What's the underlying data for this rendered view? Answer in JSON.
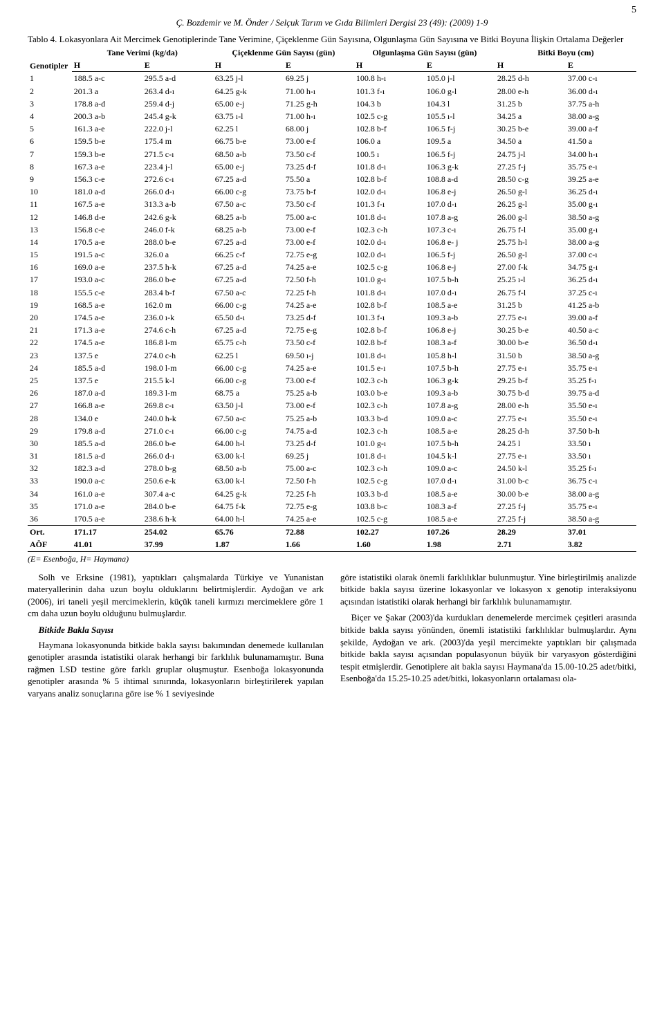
{
  "page_number": "5",
  "running_head": "Ç. Bozdemir ve M. Önder / Selçuk Tarım ve Gıda Bilimleri Dergisi 23 (49): (2009) 1-9",
  "table": {
    "caption_lead": "Tablo 4.",
    "caption_rest": " Lokasyonlara Ait Mercimek Genotiplerinde Tane Verimine, Çiçeklenme Gün Sayısına, Olgunlaşma Gün Sayısına ve Bitki Boyuna İlişkin Ortalama Değerler",
    "group_headers": [
      "Genotipler",
      "Tane Verimi (kg/da)",
      "Çiçeklenme Gün Sayısı (gün)",
      "Olgunlaşma Gün Sayısı (gün)",
      "Bitki Boyu  (cm)"
    ],
    "sub_headers": [
      "",
      "H",
      "E",
      "H",
      "E",
      "H",
      "E",
      "H",
      "E"
    ],
    "rows": [
      [
        "1",
        "188.5 a-c",
        "295.5 a-d",
        "63.25 j-l",
        "69.25 j",
        "100.8 h-ı",
        "105.0 j-l",
        "28.25 d-h",
        "37.00 c-ı"
      ],
      [
        "2",
        "201.3 a",
        "263.4 d-ı",
        "64.25 g-k",
        "71.00 h-ı",
        "101.3 f-ı",
        "106.0 g-l",
        "28.00 e-h",
        "36.00 d-ı"
      ],
      [
        "3",
        "178.8 a-d",
        "259.4 d-j",
        "65.00 e-j",
        "71.25 g-h",
        "104.3 b",
        "104.3 l",
        "31.25 b",
        "37.75 a-h"
      ],
      [
        "4",
        "200.3 a-b",
        "245.4 g-k",
        "63.75 ı-l",
        "71.00 h-ı",
        "102.5 c-g",
        "105.5 ı-l",
        "34.25 a",
        "38.00 a-g"
      ],
      [
        "5",
        "161.3 a-e",
        "222.0 j-l",
        "62.25 l",
        "68.00 j",
        "102.8 b-f",
        "106.5 f-j",
        "30.25 b-e",
        "39.00 a-f"
      ],
      [
        "6",
        "159.5 b-e",
        "175.4 m",
        "66.75 b-e",
        "73.00 e-f",
        "106.0 a",
        "109.5 a",
        "34.50 a",
        "41.50 a"
      ],
      [
        "7",
        "159.3 b-e",
        "271.5 c-ı",
        "68.50 a-b",
        "73.50 c-f",
        "100.5 ı",
        "106.5 f-j",
        "24.75 j-l",
        "34.00 h-ı"
      ],
      [
        "8",
        "167.3 a-e",
        "223.4 j-l",
        "65.00 e-j",
        "73.25 d-f",
        "101.8 d-ı",
        "106.3 g-k",
        "27.25 f-j",
        "35.75 e-ı"
      ],
      [
        "9",
        "156.3 c-e",
        "272.6 c-ı",
        "67.25 a-d",
        "75.50 a",
        "102.8 b-f",
        "108.8 a-d",
        "28.50 c-g",
        "39.25 a-e"
      ],
      [
        "10",
        "181.0 a-d",
        "266.0 d-ı",
        "66.00 c-g",
        "73.75 b-f",
        "102.0 d-ı",
        "106.8 e-j",
        "26.50 g-l",
        "36.25 d-ı"
      ],
      [
        "11",
        "167.5 a-e",
        "313.3 a-b",
        "67.50 a-c",
        "73.50 c-f",
        "101.3 f-ı",
        "107.0 d-ı",
        "26.25 g-l",
        "35.00 g-ı"
      ],
      [
        "12",
        "146.8 d-e",
        "242.6 g-k",
        "68.25 a-b",
        "75.00 a-c",
        "101.8 d-ı",
        "107.8 a-g",
        "26.00 g-l",
        "38.50 a-g"
      ],
      [
        "13",
        "156.8 c-e",
        "246.0 f-k",
        "68.25 a-b",
        "73.00 e-f",
        "102.3 c-h",
        "107.3 c-ı",
        "26.75 f-l",
        "35.00 g-ı"
      ],
      [
        "14",
        "170.5 a-e",
        "288.0 b-e",
        "67.25 a-d",
        "73.00 e-f",
        "102.0 d-ı",
        "106.8 e- j",
        "25.75 h-l",
        "38.00 a-g"
      ],
      [
        "15",
        "191.5 a-c",
        "326.0 a",
        "66.25 c-f",
        "72.75 e-g",
        "102.0 d-ı",
        "106.5 f-j",
        "26.50 g-l",
        "37.00 c-ı"
      ],
      [
        "16",
        "169.0 a-e",
        "237.5 h-k",
        "67.25 a-d",
        "74.25 a-e",
        "102.5 c-g",
        "106.8 e-j",
        "27.00 f-k",
        "34.75 g-ı"
      ],
      [
        "17",
        "193.0 a-c",
        "286.0 b-e",
        "67.25 a-d",
        "72.50 f-h",
        "101.0 g-ı",
        "107.5 b-h",
        "25.25 ı-l",
        "36.25 d-ı"
      ],
      [
        "18",
        "155.5 c-e",
        "283.4 b-f",
        "67.50 a-c",
        "72.25 f-h",
        "101.8 d-ı",
        "107.0 d-ı",
        "26.75 f-l",
        "37.25 c-ı"
      ],
      [
        "19",
        "168.5 a-e",
        "162.0 m",
        "66.00 c-g",
        "74.25 a-e",
        "102.8 b-f",
        "108.5 a-e",
        "31.25 b",
        "41.25 a-b"
      ],
      [
        "20",
        "174.5 a-e",
        "236.0 ı-k",
        "65.50 d-ı",
        "73.25 d-f",
        "101.3 f-ı",
        "109.3 a-b",
        "27.75 e-ı",
        "39.00 a-f"
      ],
      [
        "21",
        "171.3 a-e",
        "274.6 c-h",
        "67.25 a-d",
        "72.75 e-g",
        "102.8 b-f",
        "106.8 e-j",
        "30.25 b-e",
        "40.50 a-c"
      ],
      [
        "22",
        "174.5 a-e",
        "186.8 l-m",
        "65.75 c-h",
        "73.50 c-f",
        "102.8 b-f",
        "108.3 a-f",
        "30.00 b-e",
        "36.50 d-ı"
      ],
      [
        "23",
        "137.5 e",
        "274.0 c-h",
        "62.25 l",
        "69.50 ı-j",
        "101.8 d-ı",
        "105.8 h-l",
        "31.50 b",
        "38.50 a-g"
      ],
      [
        "24",
        "185.5 a-d",
        "198.0 l-m",
        "66.00 c-g",
        "74.25 a-e",
        "101.5 e-ı",
        "107.5 b-h",
        "27.75 e-ı",
        "35.75 e-ı"
      ],
      [
        "25",
        "137.5 e",
        "215.5 k-l",
        "66.00 c-g",
        "73.00 e-f",
        "102.3 c-h",
        "106.3 g-k",
        "29.25 b-f",
        "35.25 f-ı"
      ],
      [
        "26",
        "187.0 a-d",
        "189.3 l-m",
        "68.75 a",
        "75.25 a-b",
        "103.0 b-e",
        "109.3 a-b",
        "30.75 b-d",
        "39.75 a-d"
      ],
      [
        "27",
        "166.8 a-e",
        "269.8 c-ı",
        "63.50 j-l",
        "73.00 e-f",
        "102.3 c-h",
        "107.8 a-g",
        "28.00 e-h",
        "35.50 e-ı"
      ],
      [
        "28",
        "134.0 e",
        "240.0 h-k",
        "67.50 a-c",
        "75.25 a-b",
        "103.3 b-d",
        "109.0 a-c",
        "27.75 e-ı",
        "35.50 e-ı"
      ],
      [
        "29",
        "179.8 a-d",
        "271.0 c-ı",
        "66.00 c-g",
        "74.75 a-d",
        "102.3 c-h",
        "108.5 a-e",
        "28.25 d-h",
        "37.50 b-h"
      ],
      [
        "30",
        "185.5 a-d",
        "286.0 b-e",
        "64.00 h-l",
        "73.25 d-f",
        "101.0 g-ı",
        "107.5 b-h",
        "24.25 l",
        "33.50 ı"
      ],
      [
        "31",
        "181.5 a-d",
        "266.0 d-ı",
        "63.00 k-l",
        "69.25 j",
        "101.8 d-ı",
        "104.5 k-l",
        "27.75 e-ı",
        "33.50 ı"
      ],
      [
        "32",
        "182.3 a-d",
        "278.0 b-g",
        "68.50 a-b",
        "75.00 a-c",
        "102.3 c-h",
        "109.0 a-c",
        "24.50 k-l",
        "35.25 f-ı"
      ],
      [
        "33",
        "190.0 a-c",
        "250.6 e-k",
        "63.00 k-l",
        "72.50 f-h",
        "102.5 c-g",
        "107.0 d-ı",
        "31.00 b-c",
        "36.75 c-ı"
      ],
      [
        "34",
        "161.0 a-e",
        "307.4 a-c",
        "64.25 g-k",
        "72.25 f-h",
        "103.3 b-d",
        "108.5 a-e",
        "30.00 b-e",
        "38.00 a-g"
      ],
      [
        "35",
        "171.0 a-e",
        "284.0 b-e",
        "64.75 f-k",
        "72.75 e-g",
        "103.8 b-c",
        "108.3 a-f",
        "27.25 f-j",
        "35.75 e-ı"
      ],
      [
        "36",
        "170.5 a-e",
        "238.6 h-k",
        "64.00 h-l",
        "74.25 a-e",
        "102.5 c-g",
        "108.5 a-e",
        "27.25 f-j",
        "38.50 a-g"
      ]
    ],
    "footer_rows": [
      [
        "Ort.",
        "171.17",
        "254.02",
        "65.76",
        "72.88",
        "102.27",
        "107.26",
        "28.29",
        "37.01"
      ],
      [
        "AÖF",
        "41.01",
        "37.99",
        "1.87",
        "1.66",
        "1.60",
        "1.98",
        "2.71",
        "3.82"
      ]
    ],
    "note": "(E= Esenboğa, H= Haymana)"
  },
  "body": {
    "left": {
      "p1": "Solh ve Erksine (1981), yaptıkları çalışmalarda Türkiye ve Yunanistan materyallerinin daha uzun boylu olduklarını belirtmişlerdir. Aydoğan ve ark (2006), iri taneli yeşil mercimeklerin, küçük taneli kırmızı mercimeklere göre 1 cm daha uzun boylu olduğunu bulmuşlardır.",
      "h": "Bitkide Bakla Sayısı",
      "p2": "Haymana lokasyonunda bitkide bakla sayısı bakımından denemede kullanılan genotipler arasında istatistiki olarak herhangi bir farklılık bulunamamıştır. Buna rağmen LSD testine göre farklı gruplar oluşmuştur. Esenboğa lokasyonunda genotipler arasında % 5 ihtimal sınırında, lokasyonların birleştirilerek yapılan varyans analiz sonuçlarına göre ise % 1 seviyesinde"
    },
    "right": {
      "p1": "göre istatistiki olarak önemli farklılıklar bulunmuştur. Yine birleştirilmiş analizde bitkide bakla sayısı üzerine lokasyonlar ve lokasyon x genotip interaksiyonu açısından istatistiki olarak herhangi bir farklılık bulunamamıştır.",
      "p2": "Biçer ve Şakar (2003)'da kurdukları denemelerde mercimek çeşitleri arasında bitkide bakla sayısı yönünden, önemli istatistiki farklılıklar bulmuşlardır. Aynı şekilde, Aydoğan ve ark. (2003)'da yeşil mercimekte yaptıkları bir çalışmada bitkide bakla sayısı açısından populasyonun büyük bir varyasyon gösterdiğini tespit etmişlerdir. Genotiplere ait bakla sayısı Haymana'da 15.00-10.25 adet/bitki, Esenboğa'da 15.25-10.25 adet/bitki, lokasyonların ortalaması ola-"
    }
  }
}
